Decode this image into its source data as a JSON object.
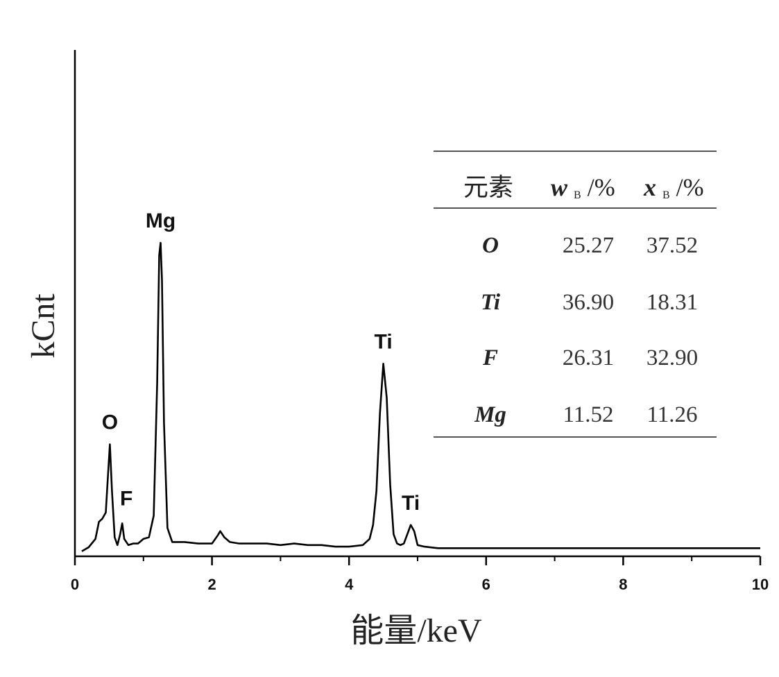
{
  "chart_data": {
    "type": "line",
    "xlabel": "能量/keV",
    "ylabel": "kCnt",
    "xlim": [
      0,
      10
    ],
    "x_ticks": [
      "0",
      "2",
      "4",
      "6",
      "8",
      "10"
    ],
    "ylim": [
      0,
      100
    ],
    "grid": false,
    "series": [
      {
        "x": [
          0.1,
          0.2,
          0.3,
          0.35,
          0.4,
          0.45,
          0.48,
          0.51,
          0.54,
          0.58,
          0.62,
          0.66,
          0.69,
          0.72,
          0.78,
          0.85,
          0.92,
          1.0,
          1.08,
          1.15,
          1.2,
          1.23,
          1.25,
          1.27,
          1.3,
          1.35,
          1.42,
          1.6,
          1.8,
          2.0,
          2.08,
          2.12,
          2.18,
          2.26,
          2.4,
          2.6,
          2.8,
          3.0,
          3.2,
          3.4,
          3.6,
          3.8,
          4.0,
          4.2,
          4.3,
          4.35,
          4.4,
          4.45,
          4.5,
          4.55,
          4.6,
          4.65,
          4.7,
          4.75,
          4.8,
          4.85,
          4.9,
          4.95,
          5.0,
          5.1,
          5.3,
          5.6,
          6.0,
          6.5,
          7.0,
          7.5,
          8.0,
          8.5,
          9.0,
          9.5,
          10.0
        ],
        "y": [
          0.5,
          1.8,
          4.5,
          10.0,
          11.0,
          13.0,
          24.0,
          35.0,
          20.0,
          5.0,
          2.5,
          6.0,
          9.5,
          4.5,
          2.5,
          3.0,
          3.0,
          4.5,
          5.0,
          12.0,
          55.0,
          96.0,
          100.0,
          88.0,
          42.0,
          8.0,
          3.5,
          3.5,
          3.0,
          3.0,
          5.5,
          7.0,
          5.0,
          3.5,
          3.0,
          3.0,
          3.0,
          2.5,
          3.0,
          2.5,
          2.5,
          2.0,
          2.0,
          2.5,
          4.5,
          9.0,
          20.0,
          45.0,
          61.0,
          50.0,
          22.0,
          6.0,
          3.0,
          2.5,
          3.0,
          6.0,
          9.0,
          7.0,
          2.5,
          2.0,
          1.5,
          1.5,
          1.5,
          1.5,
          1.5,
          1.5,
          1.5,
          1.5,
          1.5,
          1.5,
          1.5
        ]
      }
    ],
    "annotations": [
      {
        "text": "O",
        "x": 0.51,
        "y": 35.0
      },
      {
        "text": "F",
        "x": 0.69,
        "y": 9.5
      },
      {
        "text": "Mg",
        "x": 1.25,
        "y": 100.0
      },
      {
        "text": "Ti",
        "x": 4.5,
        "y": 61.0
      },
      {
        "text": "Ti",
        "x": 4.9,
        "y": 9.0
      }
    ],
    "inset_table": {
      "headers": [
        "元素",
        "w",
        "B",
        "/%",
        "x",
        "B",
        "/%"
      ],
      "rows": [
        [
          "O",
          "25.27",
          "37.52"
        ],
        [
          "Ti",
          "36.90",
          "18.31"
        ],
        [
          "F",
          "26.31",
          "32.90"
        ],
        [
          "Mg",
          "11.52",
          "11.26"
        ]
      ]
    }
  }
}
